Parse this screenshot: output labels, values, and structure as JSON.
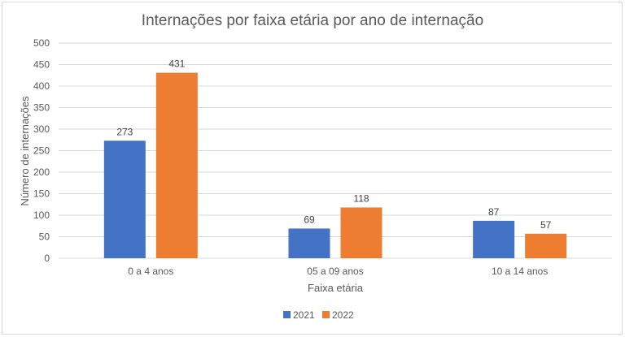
{
  "chart_data": {
    "type": "bar",
    "title": "Internações por faixa etária por ano de internação",
    "xlabel": "Faixa etária",
    "ylabel": "Número de internações",
    "categories": [
      "0 a 4 anos",
      "05 a 09 anos",
      "10 a 14 anos"
    ],
    "series": [
      {
        "name": "2021",
        "values": [
          273,
          69,
          87
        ],
        "color": "#4472c4"
      },
      {
        "name": "2022",
        "values": [
          431,
          118,
          57
        ],
        "color": "#ed7d31"
      }
    ],
    "ylim": [
      0,
      500
    ],
    "yticks": [
      0,
      50,
      100,
      150,
      200,
      250,
      300,
      350,
      400,
      450,
      500
    ],
    "grid": true,
    "legend_position": "bottom"
  }
}
